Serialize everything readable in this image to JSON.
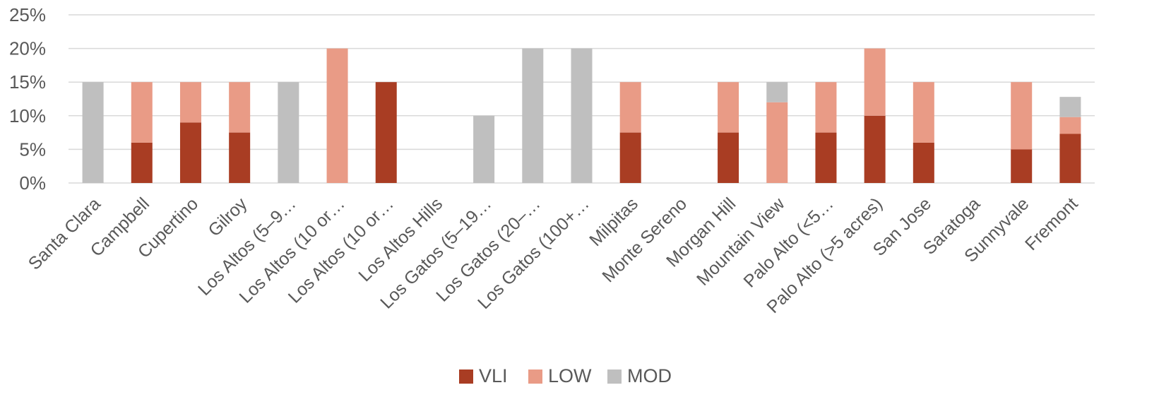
{
  "chart_data": {
    "type": "bar",
    "stacked": true,
    "title": "",
    "xlabel": "",
    "ylabel": "",
    "ylim": [
      0,
      25
    ],
    "y_ticks": [
      0,
      5,
      10,
      15,
      20,
      25
    ],
    "y_tick_labels": [
      "0%",
      "5%",
      "10%",
      "15%",
      "20%",
      "25%"
    ],
    "grid": true,
    "legend_position": "bottom",
    "categories": [
      "Santa Clara",
      "Campbell",
      "Cupertino",
      "Gilroy",
      "Los Altos (5–9…",
      "Los Altos (10 or…",
      "Los Altos (10 or…",
      "Los Altos Hills",
      "Los Gatos (5–19…",
      "Los Gatos (20–…",
      "Los Gatos (100+…",
      "Milpitas",
      "Monte Sereno",
      "Morgan Hill",
      "Mountain View",
      "Palo Alto  (<5…",
      "Palo Alto (>5 acres)",
      "San Jose",
      "Saratoga",
      "Sunnyvale",
      "Fremont"
    ],
    "series": [
      {
        "name": "VLI",
        "color": "#A93D23",
        "values": [
          0,
          6,
          9,
          7.5,
          0,
          0,
          15,
          0,
          0,
          0,
          0,
          7.5,
          0,
          7.5,
          0,
          7.5,
          10,
          6,
          0,
          5,
          7.3
        ]
      },
      {
        "name": "LOW",
        "color": "#E99B86",
        "values": [
          0,
          9,
          6,
          7.5,
          0,
          20,
          0,
          0,
          0,
          0,
          0,
          7.5,
          0,
          7.5,
          12,
          7.5,
          10,
          9,
          0,
          10,
          2.5
        ]
      },
      {
        "name": "MOD",
        "color": "#BFBFBF",
        "values": [
          15,
          0,
          0,
          0,
          15,
          0,
          0,
          0,
          10,
          20,
          20,
          0,
          0,
          0,
          3,
          0,
          0,
          0,
          0,
          0,
          3
        ]
      }
    ]
  }
}
